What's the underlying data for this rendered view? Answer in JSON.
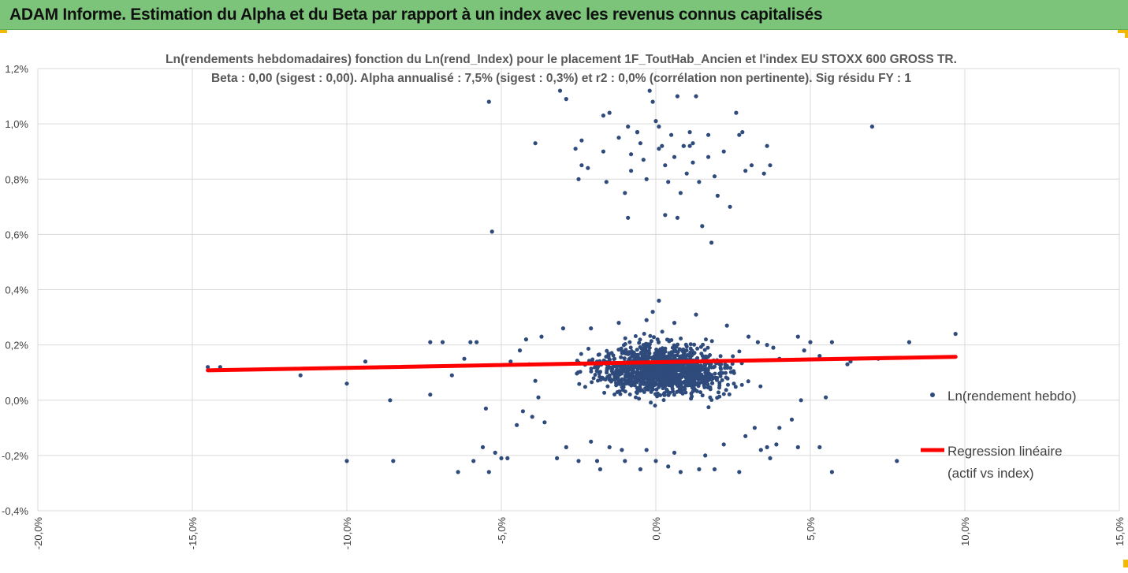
{
  "header": {
    "title": "ADAM Informe. Estimation du Alpha et du Beta par rapport à un index avec les revenus connus capitalisés"
  },
  "colors": {
    "header_bg": "#7cc47a",
    "points": "#2e4b7c",
    "regression": "#ff0000",
    "grid": "#d9d9d9",
    "corner_marks": "#f3b800"
  },
  "chart_data": {
    "type": "scatter",
    "title": "Ln(rendements hebdomadaires) fonction du Ln(rend_Index)  pour le placement 1F_ToutHab_Ancien et l'index EU STOXX 600 GROSS TR.",
    "subtitle": "Beta : 0,00 (sigest : 0,00). Alpha annualisé : 7,5% (sigest : 0,3%) et r2 : 0,0% (corrélation non pertinente). Sig résidu FY : 1",
    "xlim": [
      -0.2,
      0.15
    ],
    "ylim": [
      -0.004,
      0.012
    ],
    "x_ticks": [
      -0.2,
      -0.15,
      -0.1,
      -0.05,
      0.0,
      0.05,
      0.1,
      0.15
    ],
    "x_tick_labels": [
      "-20,0%",
      "-15,0%",
      "-10,0%",
      "-5,0%",
      "0,0%",
      "5,0%",
      "10,0%",
      "15,0%"
    ],
    "y_ticks": [
      -0.004,
      -0.002,
      0.0,
      0.002,
      0.004,
      0.006,
      0.008,
      0.01,
      0.012
    ],
    "y_tick_labels": [
      "-0,4%",
      "-0,2%",
      "0,0%",
      "0,2%",
      "0,4%",
      "0,6%",
      "0,8%",
      "1,0%",
      "1,2%"
    ],
    "grid": true,
    "legend_position": "right",
    "series": [
      {
        "name": "Ln(rendement hebdo)",
        "kind": "scatter",
        "points": [
          [
            -0.145,
            0.0012
          ],
          [
            -0.141,
            0.0012
          ],
          [
            -0.115,
            0.0009
          ],
          [
            -0.1,
            0.0006
          ],
          [
            -0.094,
            0.0014
          ],
          [
            -0.1,
            -0.0022
          ],
          [
            -0.085,
            -0.0022
          ],
          [
            -0.086,
            0.0
          ],
          [
            -0.073,
            0.0021
          ],
          [
            -0.069,
            0.0021
          ],
          [
            -0.073,
            0.0002
          ],
          [
            -0.066,
            0.0009
          ],
          [
            -0.064,
            -0.0026
          ],
          [
            -0.062,
            0.0015
          ],
          [
            -0.06,
            0.0021
          ],
          [
            -0.058,
            0.0021
          ],
          [
            -0.059,
            -0.0022
          ],
          [
            -0.056,
            -0.0017
          ],
          [
            -0.055,
            -0.0003
          ],
          [
            -0.054,
            -0.0026
          ],
          [
            -0.052,
            -0.0019
          ],
          [
            -0.05,
            -0.0021
          ],
          [
            -0.048,
            -0.0021
          ],
          [
            -0.047,
            0.0014
          ],
          [
            -0.045,
            -0.0009
          ],
          [
            -0.054,
            0.0108
          ],
          [
            -0.053,
            0.0061
          ],
          [
            -0.039,
            0.0093
          ],
          [
            -0.029,
            0.0109
          ],
          [
            -0.031,
            0.0112
          ],
          [
            -0.026,
            0.0091
          ],
          [
            -0.024,
            0.0094
          ],
          [
            -0.025,
            0.008
          ],
          [
            -0.024,
            0.0085
          ],
          [
            -0.022,
            0.0084
          ],
          [
            -0.017,
            0.0103
          ],
          [
            -0.015,
            0.0104
          ],
          [
            -0.017,
            0.009
          ],
          [
            -0.016,
            0.0079
          ],
          [
            -0.012,
            0.0095
          ],
          [
            -0.01,
            0.0075
          ],
          [
            -0.009,
            0.0066
          ],
          [
            -0.009,
            0.0099
          ],
          [
            -0.008,
            0.0089
          ],
          [
            -0.008,
            0.0083
          ],
          [
            -0.006,
            0.0097
          ],
          [
            -0.005,
            0.0093
          ],
          [
            -0.004,
            0.0087
          ],
          [
            -0.003,
            0.008
          ],
          [
            -0.002,
            0.0112
          ],
          [
            -0.001,
            0.0108
          ],
          [
            0.0,
            0.0101
          ],
          [
            0.001,
            0.0099
          ],
          [
            0.002,
            0.0092
          ],
          [
            0.003,
            0.0085
          ],
          [
            0.004,
            0.0079
          ],
          [
            0.005,
            0.0096
          ],
          [
            0.006,
            0.0088
          ],
          [
            0.007,
            0.011
          ],
          [
            0.007,
            0.0066
          ],
          [
            0.008,
            0.0075
          ],
          [
            0.009,
            0.0092
          ],
          [
            0.01,
            0.0082
          ],
          [
            0.011,
            0.0097
          ],
          [
            0.012,
            0.0086
          ],
          [
            0.013,
            0.011
          ],
          [
            0.014,
            0.0079
          ],
          [
            0.015,
            0.0063
          ],
          [
            0.017,
            0.0096
          ],
          [
            0.017,
            0.0088
          ],
          [
            0.018,
            0.0057
          ],
          [
            0.019,
            0.0081
          ],
          [
            0.02,
            0.0074
          ],
          [
            0.022,
            0.009
          ],
          [
            0.024,
            0.007
          ],
          [
            0.026,
            0.0104
          ],
          [
            0.027,
            0.0096
          ],
          [
            0.029,
            0.0083
          ],
          [
            0.031,
            0.0085
          ],
          [
            0.035,
            0.0082
          ],
          [
            0.028,
            0.0097
          ],
          [
            0.036,
            0.0092
          ],
          [
            0.037,
            0.0085
          ],
          [
            0.07,
            0.0099
          ],
          [
            0.001,
            0.0091
          ],
          [
            0.009,
            0.0092
          ],
          [
            0.011,
            0.0092
          ],
          [
            -0.006,
            0.0097
          ],
          [
            0.003,
            0.0067
          ],
          [
            0.012,
            0.0093
          ],
          [
            0.001,
            0.0036
          ],
          [
            -0.001,
            0.0032
          ],
          [
            0.006,
            0.0028
          ],
          [
            0.013,
            0.0031
          ],
          [
            -0.003,
            0.0029
          ],
          [
            -0.012,
            0.0028
          ],
          [
            -0.021,
            0.0026
          ],
          [
            0.023,
            0.0027
          ],
          [
            -0.03,
            0.0026
          ],
          [
            -0.037,
            0.0023
          ],
          [
            0.03,
            0.0023
          ],
          [
            0.033,
            0.0021
          ],
          [
            0.036,
            0.002
          ],
          [
            0.038,
            0.0019
          ],
          [
            0.04,
            0.0015
          ],
          [
            0.046,
            0.0023
          ],
          [
            0.048,
            0.0018
          ],
          [
            0.05,
            0.0021
          ],
          [
            0.053,
            0.0016
          ],
          [
            0.057,
            0.0021
          ],
          [
            0.062,
            0.0013
          ],
          [
            0.063,
            0.0014
          ],
          [
            0.082,
            0.0021
          ],
          [
            0.097,
            0.0024
          ],
          [
            0.072,
            0.0015
          ],
          [
            0.055,
            0.0001
          ],
          [
            0.047,
            0.0
          ],
          [
            0.053,
            -0.0017
          ],
          [
            0.046,
            -0.0017
          ],
          [
            0.039,
            -0.0016
          ],
          [
            0.036,
            -0.0017
          ],
          [
            0.034,
            -0.0018
          ],
          [
            0.044,
            -0.0007
          ],
          [
            0.04,
            -0.001
          ],
          [
            0.037,
            -0.0021
          ],
          [
            0.057,
            -0.0026
          ],
          [
            0.078,
            -0.0022
          ],
          [
            0.027,
            -0.0026
          ],
          [
            0.019,
            -0.0025
          ],
          [
            0.014,
            -0.0025
          ],
          [
            0.008,
            -0.0026
          ],
          [
            0.004,
            -0.0024
          ],
          [
            0.0,
            -0.0022
          ],
          [
            -0.005,
            -0.0025
          ],
          [
            -0.01,
            -0.0022
          ],
          [
            -0.018,
            -0.0025
          ],
          [
            -0.019,
            -0.0022
          ],
          [
            -0.025,
            -0.0022
          ],
          [
            -0.032,
            -0.0021
          ],
          [
            -0.029,
            -0.0017
          ],
          [
            -0.021,
            -0.0015
          ],
          [
            -0.015,
            -0.0017
          ],
          [
            -0.011,
            -0.0018
          ],
          [
            -0.003,
            -0.0018
          ],
          [
            0.006,
            -0.0019
          ],
          [
            0.016,
            -0.002
          ],
          [
            0.022,
            -0.0016
          ],
          [
            0.029,
            -0.0013
          ],
          [
            0.032,
            -0.001
          ],
          [
            -0.036,
            -0.0008
          ],
          [
            -0.04,
            -0.0006
          ],
          [
            -0.043,
            -0.0004
          ],
          [
            -0.038,
            0.0001
          ],
          [
            -0.039,
            0.0007
          ],
          [
            -0.041,
            0.0013
          ],
          [
            -0.044,
            0.0018
          ],
          [
            -0.042,
            0.0022
          ]
        ]
      },
      {
        "name": "Regression linéaire\n(actif vs index)",
        "kind": "line",
        "points": [
          [
            -0.145,
            0.00108
          ],
          [
            0.097,
            0.00157
          ]
        ]
      }
    ],
    "dense_cluster": {
      "x_center": 0.002,
      "x_spread": 0.026,
      "y_center": 0.0011,
      "y_spread": 0.0011,
      "count": 1300
    }
  },
  "legend": {
    "scatter_label": "Ln(rendement hebdo)",
    "line_label_1": "Regression linéaire",
    "line_label_2": "(actif vs index)"
  }
}
